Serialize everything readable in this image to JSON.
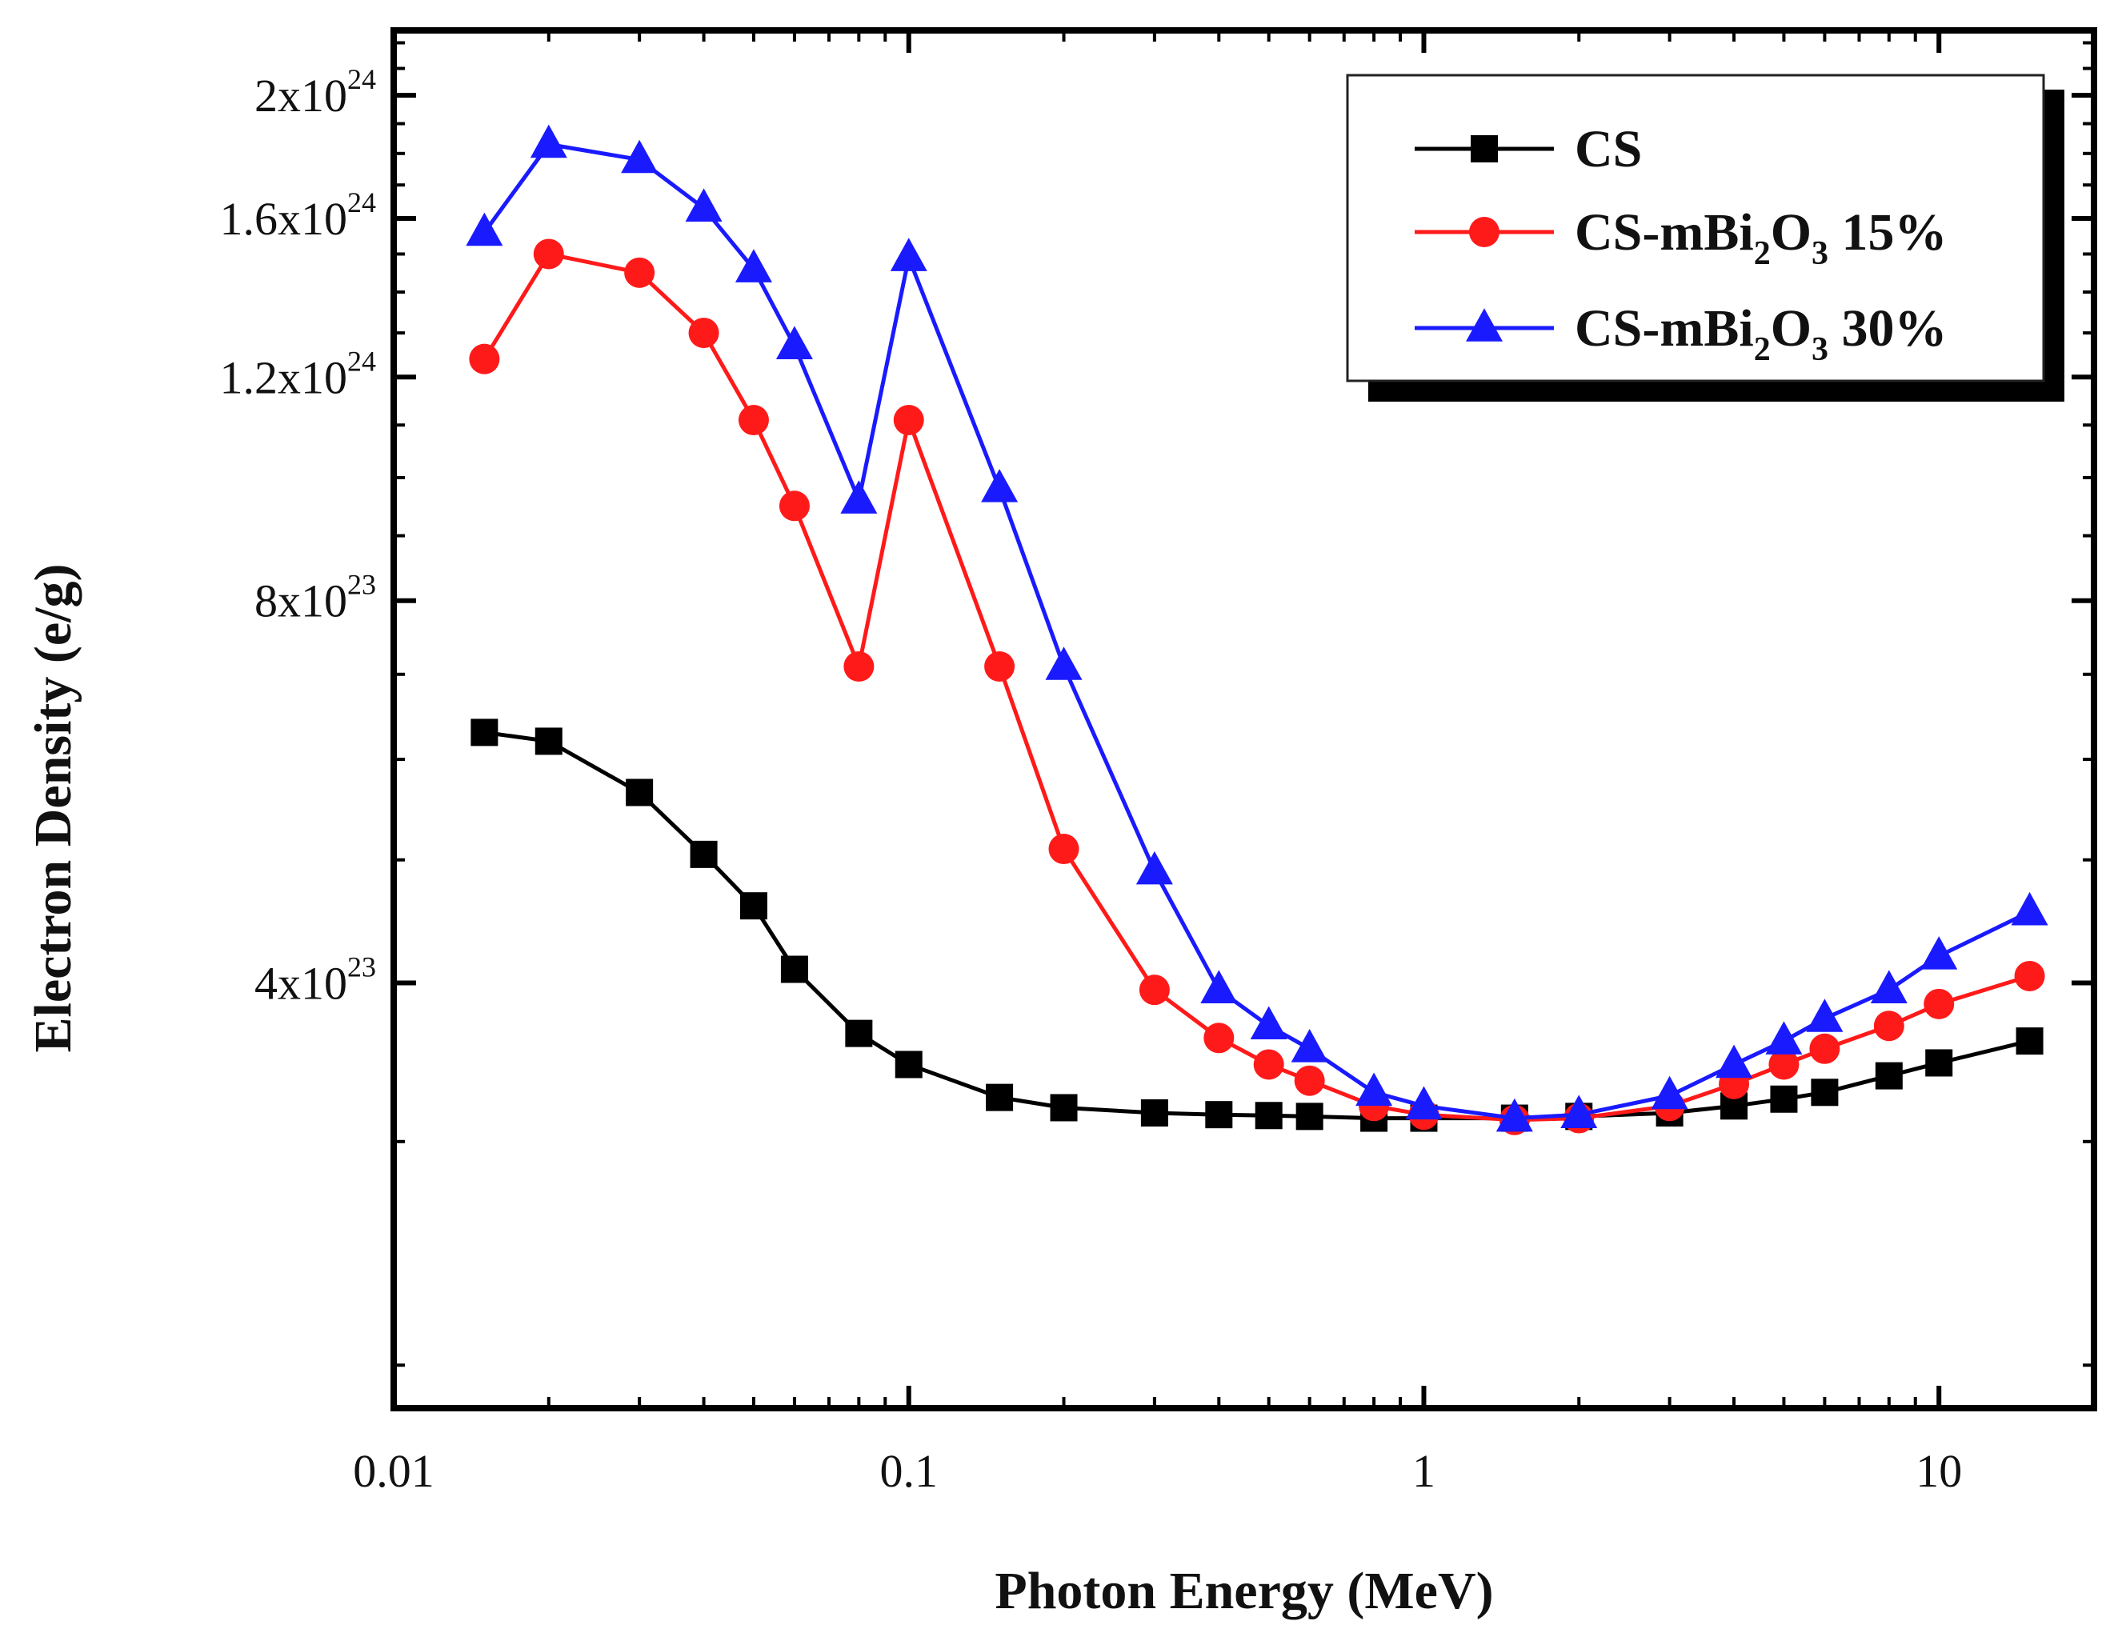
{
  "chart_data": {
    "type": "line",
    "title": "",
    "xlabel": "Photon Energy (MeV)",
    "ylabel": "Electron Density (e/g)",
    "x_scale": "log",
    "y_scale": "log",
    "xlim": [
      0.01,
      20
    ],
    "ylim": [
      1.85e+23,
      2.25e+24
    ],
    "x": [
      0.015,
      0.02,
      0.03,
      0.04,
      0.05,
      0.06,
      0.08,
      0.1,
      0.15,
      0.2,
      0.3,
      0.4,
      0.5,
      0.6,
      0.8,
      1,
      1.5,
      2,
      3,
      4,
      5,
      6,
      8,
      10,
      15
    ],
    "x_ticks": [
      {
        "value": 0.01,
        "label": "0.01"
      },
      {
        "value": 0.1,
        "label": "0.1"
      },
      {
        "value": 1,
        "label": "1"
      },
      {
        "value": 10,
        "label": "10"
      }
    ],
    "y_ticks": [
      {
        "value": 4e+23,
        "mantissa": "4x10",
        "exponent": "23"
      },
      {
        "value": 8e+23,
        "mantissa": "8x10",
        "exponent": "23"
      },
      {
        "value": 1.2e+24,
        "mantissa": "1.2x10",
        "exponent": "24"
      },
      {
        "value": 1.6e+24,
        "mantissa": "1.6x10",
        "exponent": "24"
      },
      {
        "value": 2e+24,
        "mantissa": "2x10",
        "exponent": "24"
      }
    ],
    "series": [
      {
        "name": "CS",
        "color": "#000000",
        "marker": "square",
        "values": [
          6.3e+23,
          6.2e+23,
          5.65e+23,
          5.05e+23,
          4.6e+23,
          4.1e+23,
          3.65e+23,
          3.45e+23,
          3.25e+23,
          3.19e+23,
          3.16e+23,
          3.15e+23,
          3.145e+23,
          3.14e+23,
          3.13e+23,
          3.13e+23,
          3.13e+23,
          3.14e+23,
          3.16e+23,
          3.2e+23,
          3.24e+23,
          3.28e+23,
          3.38e+23,
          3.46e+23,
          3.6e+23
        ]
      },
      {
        "name": "CS-mBi2O3 15%",
        "color": "#ff1a1a",
        "marker": "circle",
        "values": [
          1.24e+24,
          1.5e+24,
          1.45e+24,
          1.3e+24,
          1.11e+24,
          9.5e+23,
          7.1e+23,
          1.11e+24,
          7.1e+23,
          5.1e+23,
          3.95e+23,
          3.62e+23,
          3.45e+23,
          3.35e+23,
          3.2e+23,
          3.15e+23,
          3.12e+23,
          3.13e+23,
          3.2e+23,
          3.33e+23,
          3.45e+23,
          3.55e+23,
          3.7e+23,
          3.85e+23,
          4.05e+23
        ]
      },
      {
        "name": "CS-mBi2O3 30%",
        "color": "#1a1aff",
        "marker": "triangle",
        "values": [
          1.56e+24,
          1.83e+24,
          1.78e+24,
          1.63e+24,
          1.46e+24,
          1.27e+24,
          9.6e+23,
          1.49e+24,
          9.8e+23,
          7.1e+23,
          4.9e+23,
          3.95e+23,
          3.7e+23,
          3.55e+23,
          3.28e+23,
          3.2e+23,
          3.13e+23,
          3.15e+23,
          3.26e+23,
          3.45e+23,
          3.6e+23,
          3.75e+23,
          3.95e+23,
          4.2e+23,
          4.55e+23
        ]
      }
    ],
    "legend": {
      "position": "top-right",
      "entries": [
        {
          "prefix": "CS",
          "sub1": "",
          "mid": "",
          "sub2": "",
          "suffix": ""
        },
        {
          "prefix": "CS-mBi",
          "sub1": "2",
          "mid": "O",
          "sub2": "3",
          "suffix": " 15%"
        },
        {
          "prefix": "CS-mBi",
          "sub1": "2",
          "mid": "O",
          "sub2": "3",
          "suffix": " 30%"
        }
      ]
    }
  }
}
